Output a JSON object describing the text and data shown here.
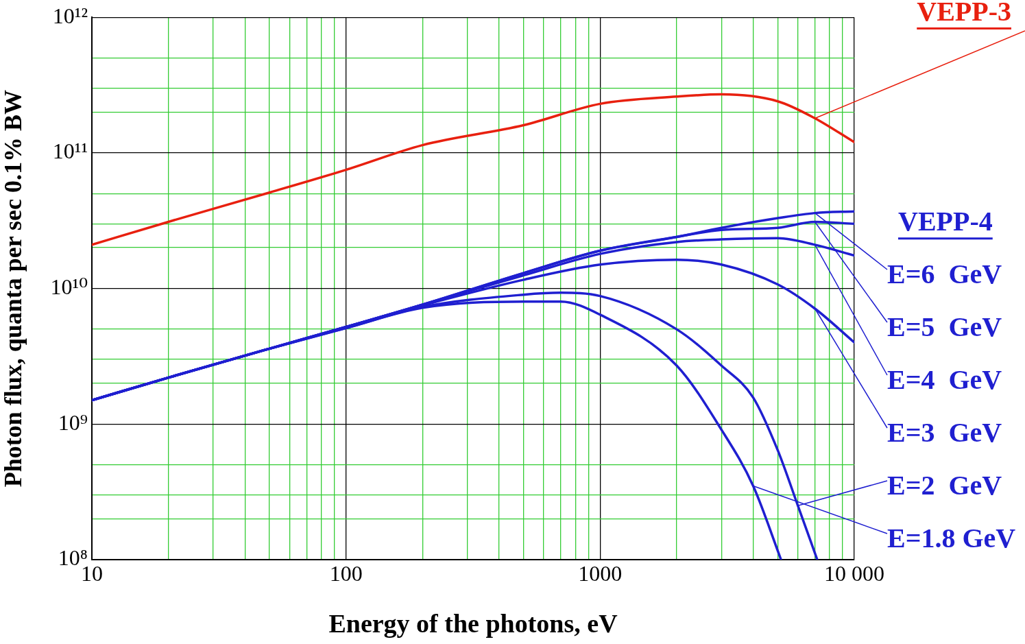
{
  "chart_data": {
    "type": "line",
    "xlabel": "Energy of the photons, eV",
    "ylabel": "Photon flux, quanta per sec 0.1% BW",
    "log": "xy",
    "grid": true,
    "legend": "right",
    "marker": "none",
    "line_style": "solid",
    "xlim": [
      10,
      10000
    ],
    "ylim": [
      100000000,
      1000000000000
    ],
    "xticks": [
      10,
      {
        "value": 20,
        "label": null
      },
      {
        "value": 30,
        "label": null
      },
      {
        "value": 40,
        "label": null
      },
      {
        "value": 50,
        "label": null
      },
      {
        "value": 60,
        "label": null
      },
      {
        "value": 70,
        "label": null
      },
      {
        "value": 80,
        "label": null
      },
      {
        "value": 90,
        "label": null
      },
      100,
      {
        "value": 200,
        "label": null
      },
      {
        "value": 300,
        "label": null
      },
      {
        "value": 400,
        "label": null
      },
      {
        "value": 500,
        "label": null
      },
      {
        "value": 600,
        "label": null
      },
      {
        "value": 700,
        "label": null
      },
      {
        "value": 800,
        "label": null
      },
      {
        "value": 900,
        "label": null
      },
      1000,
      {
        "value": 2000,
        "label": null
      },
      {
        "value": 3000,
        "label": null
      },
      {
        "value": 4000,
        "label": null
      },
      {
        "value": 5000,
        "label": null
      },
      {
        "value": 6000,
        "label": null
      },
      {
        "value": 7000,
        "label": null
      },
      {
        "value": 8000,
        "label": null
      },
      {
        "value": 9000,
        "label": null
      },
      {
        "value": 10000,
        "label": "10 000"
      }
    ],
    "yticks": [
      {
        "value": 100000000,
        "label": "10⁸"
      },
      {
        "value": 200000000,
        "label": null
      },
      {
        "value": 300000000,
        "label": null
      },
      {
        "value": 500000000,
        "label": null
      },
      {
        "value": 1000000000,
        "label": "10⁹"
      },
      {
        "value": 2000000000,
        "label": null
      },
      {
        "value": 3000000000,
        "label": null
      },
      {
        "value": 5000000000,
        "label": null
      },
      {
        "value": 10000000000,
        "label": "10¹⁰"
      },
      {
        "value": 20000000000,
        "label": null
      },
      {
        "value": 30000000000,
        "label": null
      },
      {
        "value": 50000000000,
        "label": null
      },
      {
        "value": 100000000000,
        "label": "10¹¹"
      },
      {
        "value": 200000000000,
        "label": null
      },
      {
        "value": 300000000000,
        "label": null
      },
      {
        "value": 500000000000,
        "label": null
      },
      {
        "value": 1000000000000,
        "label": "10¹²"
      }
    ],
    "annotations": [
      {
        "text": "VEPP-4",
        "x": 10000,
        "y": 37000000000
      }
    ],
    "series": [
      {
        "name": "VEPP-3",
        "color": "#e8200f",
        "x": [
          10,
          20,
          50,
          100,
          200,
          500,
          1000,
          2000,
          3000,
          5000,
          7000,
          10000
        ],
        "values": [
          21000000000,
          31000000000,
          51000000000,
          75000000000,
          114000000000,
          160000000000,
          230000000000,
          260000000000,
          270000000000,
          240000000000,
          180000000000,
          120000000000
        ]
      },
      {
        "name": "E=6  GeV",
        "color": "#1f1fd0",
        "x": [
          10,
          20,
          50,
          100,
          200,
          500,
          1000,
          2000,
          3000,
          5000,
          7000,
          10000
        ],
        "values": [
          1500000000,
          2200000000,
          3600000000,
          5200000000,
          7600000000,
          13000000000,
          19000000000,
          24000000000,
          28000000000,
          33000000000,
          36000000000,
          37000000000
        ]
      },
      {
        "name": "E=5  GeV",
        "color": "#1f1fd0",
        "x": [
          10,
          20,
          50,
          100,
          200,
          500,
          1000,
          2000,
          3000,
          5000,
          7000,
          10000
        ],
        "values": [
          1500000000,
          2200000000,
          3600000000,
          5200000000,
          7600000000,
          13000000000,
          19000000000,
          24000000000,
          27000000000,
          28000000000,
          31000000000,
          30000000000
        ]
      },
      {
        "name": "E=4  GeV",
        "color": "#1f1fd0",
        "x": [
          10,
          20,
          50,
          100,
          200,
          500,
          1000,
          2000,
          3000,
          5000,
          7000,
          10000
        ],
        "values": [
          1500000000,
          2200000000,
          3600000000,
          5200000000,
          7600000000,
          12500000000,
          18000000000,
          22000000000,
          23000000000,
          23500000000,
          21000000000,
          17500000000
        ]
      },
      {
        "name": "E=3  GeV",
        "color": "#1f1fd0",
        "x": [
          10,
          20,
          50,
          100,
          200,
          500,
          1000,
          2000,
          3000,
          5000,
          7000,
          10000
        ],
        "values": [
          1500000000,
          2200000000,
          3600000000,
          5200000000,
          7500000000,
          11600000000,
          15000000000,
          16300000000,
          15000000000,
          10700000000,
          7100000000,
          4000000000
        ]
      },
      {
        "name": "E=2  GeV",
        "color": "#1f1fd0",
        "x": [
          10,
          20,
          50,
          100,
          200,
          500,
          700,
          1000,
          2000,
          3000,
          4000,
          5000,
          6000,
          7150
        ],
        "values": [
          1500000000,
          2200000000,
          3600000000,
          5100000000,
          7300000000,
          9000000000,
          9300000000,
          8800000000,
          5000000000,
          2700000000,
          1570000000,
          640000000,
          250000000,
          100000000
        ]
      },
      {
        "name": "E=1.8 GeV",
        "color": "#1f1fd0",
        "x": [
          10,
          20,
          50,
          100,
          200,
          500,
          700,
          1000,
          2000,
          3000,
          4000,
          5150
        ],
        "values": [
          1500000000,
          2200000000,
          3600000000,
          5100000000,
          7200000000,
          8000000000,
          8000000000,
          6400000000,
          2700000000,
          910000000,
          350000000,
          100000000
        ]
      }
    ]
  }
}
